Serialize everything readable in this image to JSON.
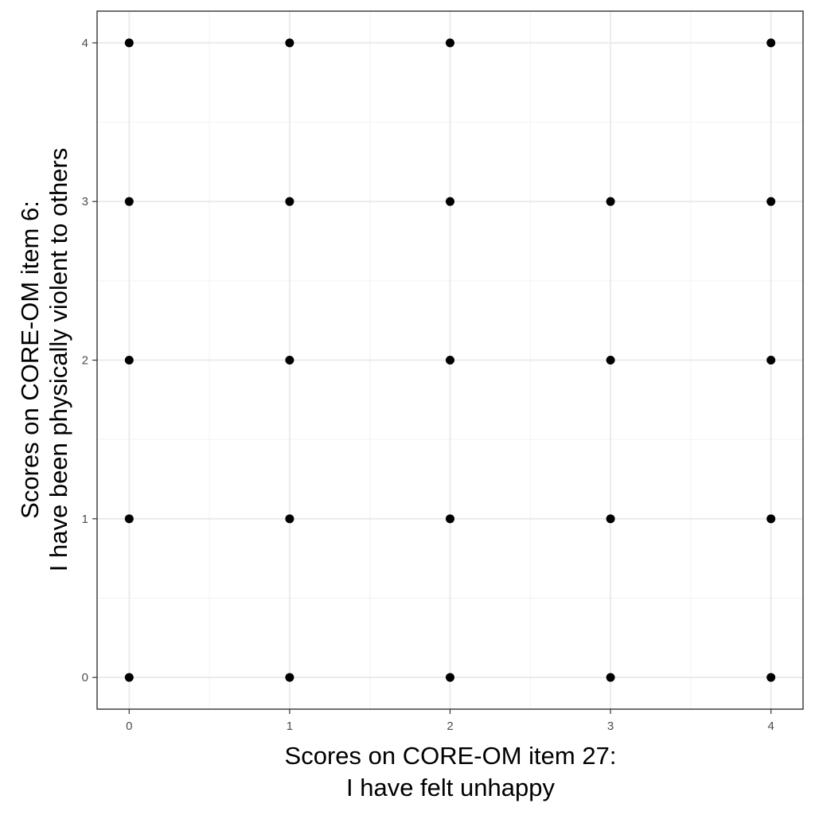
{
  "chart_data": {
    "type": "scatter",
    "xlabel": [
      "Scores on CORE-OM item 27:",
      "I have felt unhappy"
    ],
    "ylabel": [
      "Scores on CORE-OM item 6:",
      "I have been physically violent to others"
    ],
    "xlim": [
      -0.2,
      4.2
    ],
    "ylim": [
      -0.2,
      4.2
    ],
    "xticks": [
      0,
      1,
      2,
      3,
      4
    ],
    "yticks": [
      0,
      1,
      2,
      3,
      4
    ],
    "grid": true,
    "points": [
      {
        "x": 0,
        "y": 4
      },
      {
        "x": 1,
        "y": 4
      },
      {
        "x": 2,
        "y": 4
      },
      {
        "x": 4,
        "y": 4
      },
      {
        "x": 0,
        "y": 3
      },
      {
        "x": 1,
        "y": 3
      },
      {
        "x": 2,
        "y": 3
      },
      {
        "x": 3,
        "y": 3
      },
      {
        "x": 4,
        "y": 3
      },
      {
        "x": 0,
        "y": 2
      },
      {
        "x": 1,
        "y": 2
      },
      {
        "x": 2,
        "y": 2
      },
      {
        "x": 3,
        "y": 2
      },
      {
        "x": 4,
        "y": 2
      },
      {
        "x": 0,
        "y": 1
      },
      {
        "x": 1,
        "y": 1
      },
      {
        "x": 2,
        "y": 1
      },
      {
        "x": 3,
        "y": 1
      },
      {
        "x": 4,
        "y": 1
      },
      {
        "x": 0,
        "y": 0
      },
      {
        "x": 1,
        "y": 0
      },
      {
        "x": 2,
        "y": 0
      },
      {
        "x": 3,
        "y": 0
      },
      {
        "x": 4,
        "y": 0
      }
    ],
    "colors": {
      "points": "#000000",
      "grid": "#ebebeb",
      "border": "#333333"
    }
  }
}
